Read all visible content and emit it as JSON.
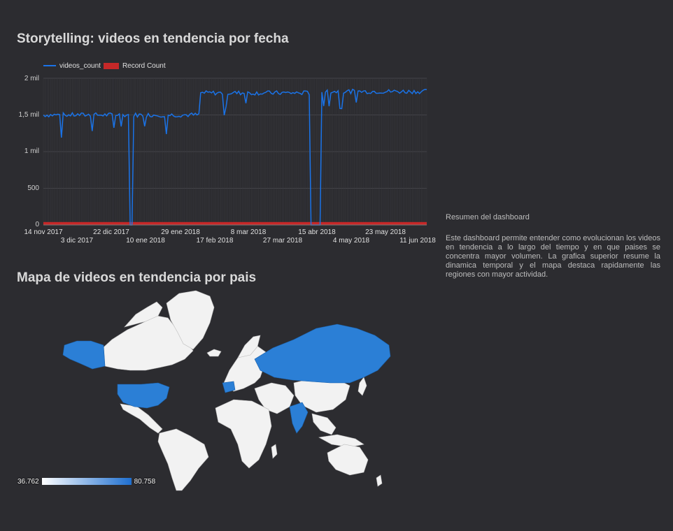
{
  "chart_section": {
    "title": "Storytelling: videos en tendencia por fecha"
  },
  "map_section": {
    "title": "Mapa de videos en tendencia por pais",
    "legend_min": "36.762",
    "legend_max": "80.758",
    "color_low": "#ffffff",
    "color_high": "#1e6fd0",
    "highlighted_regions": [
      "United States",
      "Alaska",
      "Russia",
      "India",
      "Spain"
    ]
  },
  "summary": {
    "heading": "Resumen del dashboard",
    "body": "Este dashboard permite entender como evolucionan los videos en tendencia a lo largo del tiempo y en que paises se concentra mayor volumen. La grafica superior resume la dinamica temporal y el mapa destaca rapidamente las regiones con mayor actividad."
  },
  "colors": {
    "background": "#2c2c30",
    "videos_count_line": "#1a73e8",
    "record_count_bar": "#c62828"
  },
  "chart_data": {
    "type": "line",
    "series": [
      {
        "name": "videos_count",
        "style": "line",
        "segments": [
          {
            "start": "2017-11-14",
            "end": "2017-12-31",
            "approx": 1500
          },
          {
            "start": "2018-01-01",
            "end": "2018-01-02",
            "approx": 0
          },
          {
            "start": "2018-01-03",
            "end": "2018-02-08",
            "approx": 1500
          },
          {
            "start": "2018-02-09",
            "end": "2018-04-10",
            "approx": 1800
          },
          {
            "start": "2018-04-11",
            "end": "2018-04-16",
            "approx": 0
          },
          {
            "start": "2018-04-17",
            "end": "2018-06-14",
            "approx": 1820
          }
        ]
      },
      {
        "name": "Record Count",
        "style": "bar",
        "approx": 40
      }
    ],
    "yticks": [
      "0",
      "500",
      "1 mil",
      "1,5 mil",
      "2 mil"
    ],
    "ylim": [
      0,
      2000
    ],
    "xticks_top": [
      "14 nov 2017",
      "22 dic 2017",
      "29 ene 2018",
      "8 mar 2018",
      "15 abr 2018",
      "23 may 2018"
    ],
    "xticks_bottom": [
      "3 dic 2017",
      "10 ene 2018",
      "17 feb 2018",
      "27 mar 2018",
      "4 may 2018",
      "11 jun 2018"
    ],
    "xlim": [
      "2017-11-14",
      "2018-06-14"
    ],
    "legend": [
      "videos_count",
      "Record Count"
    ],
    "legend_position": "top-left",
    "grid": true
  }
}
